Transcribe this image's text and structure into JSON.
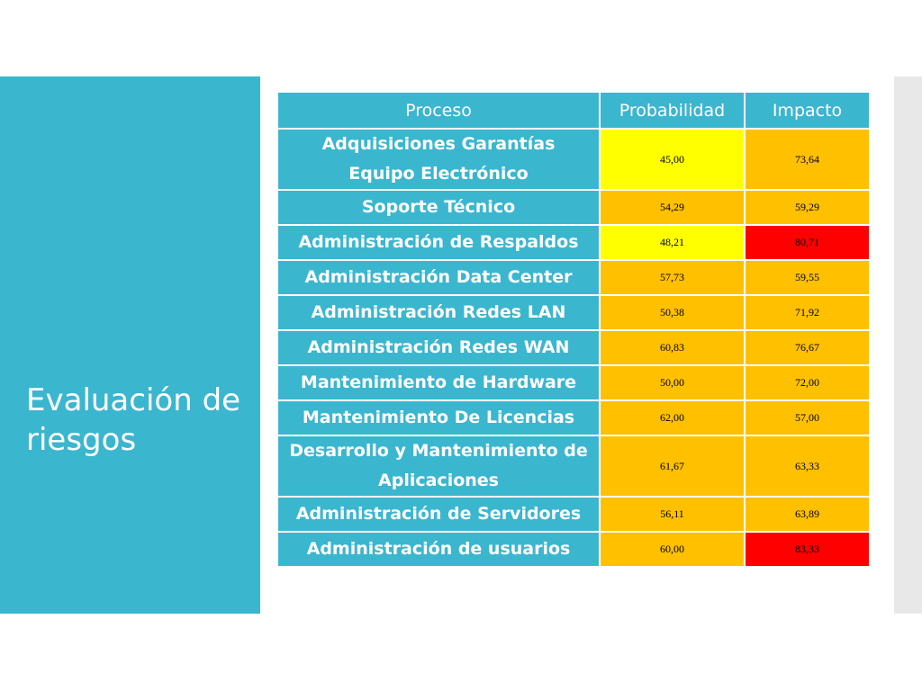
{
  "slide": {
    "title": "Evaluación de riesgos"
  },
  "table": {
    "headers": [
      "Proceso",
      "Probabilidad",
      "Impacto"
    ],
    "rows": [
      {
        "proceso": "Adquisiciones Garantías Equipo Electrónico",
        "probabilidad": "45,00",
        "impacto": "73,64",
        "prob_color": "#ffff00",
        "imp_color": "#ffc000"
      },
      {
        "proceso": "Soporte Técnico",
        "probabilidad": "54,29",
        "impacto": "59,29",
        "prob_color": "#ffc000",
        "imp_color": "#ffc000"
      },
      {
        "proceso": "Administración de Respaldos",
        "probabilidad": "48,21",
        "impacto": "80,71",
        "prob_color": "#ffff00",
        "imp_color": "#ff0000"
      },
      {
        "proceso": "Administración Data Center",
        "probabilidad": "57,73",
        "impacto": "59,55",
        "prob_color": "#ffc000",
        "imp_color": "#ffc000"
      },
      {
        "proceso": "Administración Redes LAN",
        "probabilidad": "50,38",
        "impacto": "71,92",
        "prob_color": "#ffc000",
        "imp_color": "#ffc000"
      },
      {
        "proceso": "Administración Redes WAN",
        "probabilidad": "60,83",
        "impacto": "76,67",
        "prob_color": "#ffc000",
        "imp_color": "#ffc000"
      },
      {
        "proceso": "Mantenimiento de Hardware",
        "probabilidad": "50,00",
        "impacto": "72,00",
        "prob_color": "#ffc000",
        "imp_color": "#ffc000"
      },
      {
        "proceso": "Mantenimiento De Licencias",
        "probabilidad": "62,00",
        "impacto": "57,00",
        "prob_color": "#ffc000",
        "imp_color": "#ffc000"
      },
      {
        "proceso": "Desarrollo y Mantenimiento de Aplicaciones",
        "probabilidad": "61,67",
        "impacto": "63,33",
        "prob_color": "#ffc000",
        "imp_color": "#ffc000"
      },
      {
        "proceso": "Administración de Servidores",
        "probabilidad": "56,11",
        "impacto": "63,89",
        "prob_color": "#ffc000",
        "imp_color": "#ffc000"
      },
      {
        "proceso": "Administración de usuarios",
        "probabilidad": "60,00",
        "impacto": "83,33",
        "prob_color": "#ffc000",
        "imp_color": "#ff0000"
      }
    ]
  },
  "colors": {
    "panel": "#3bb6cf",
    "yellow": "#ffff00",
    "orange": "#ffc000",
    "red": "#ff0000"
  }
}
